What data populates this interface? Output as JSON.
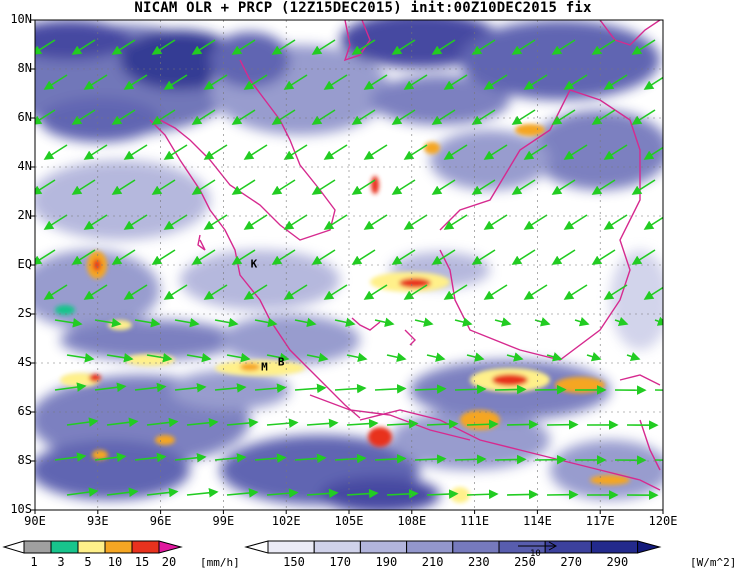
{
  "title": "NICAM OLR + PRCP (12Z15DEC2015) init:00Z10DEC2015 fix",
  "map": {
    "lon_range": [
      90,
      120
    ],
    "lat_range": [
      -10,
      10
    ],
    "lat_labels": [
      "10N",
      "8N",
      "6N",
      "4N",
      "2N",
      "EQ",
      "2S",
      "4S",
      "6S",
      "8S",
      "10S"
    ],
    "lon_labels": [
      "90E",
      "93E",
      "96E",
      "99E",
      "102E",
      "105E",
      "108E",
      "111E",
      "114E",
      "117E",
      "120E"
    ],
    "station_markers": [
      {
        "label": "K",
        "lon": 100.3,
        "lat": -0.1
      },
      {
        "label": "M",
        "lon": 100.8,
        "lat": -4.3
      },
      {
        "label": "B",
        "lon": 101.6,
        "lat": -4.1
      }
    ],
    "colors": {
      "coast": "#d62a8f",
      "wind": "#22cc22",
      "grid": "#777777"
    }
  },
  "precip_colorbar": {
    "labels": [
      "1",
      "3",
      "5",
      "10",
      "15",
      "20"
    ],
    "unit": "[mm/h]",
    "colors": [
      "#ffffff",
      "#a0a0a0",
      "#18c48c",
      "#fff08a",
      "#f5a623",
      "#e8321e",
      "#e0189e"
    ]
  },
  "olr_colorbar": {
    "labels": [
      "150",
      "170",
      "190",
      "210",
      "230",
      "250",
      "270",
      "290"
    ],
    "unit": "[W/m^2]",
    "reference_vector_label": "10",
    "colors": [
      "#ffffff",
      "#ebebf6",
      "#d0d2ea",
      "#b2b5dc",
      "#9397cc",
      "#767abd",
      "#585dae",
      "#3c419d",
      "#232a8c",
      "#131a7c"
    ]
  }
}
